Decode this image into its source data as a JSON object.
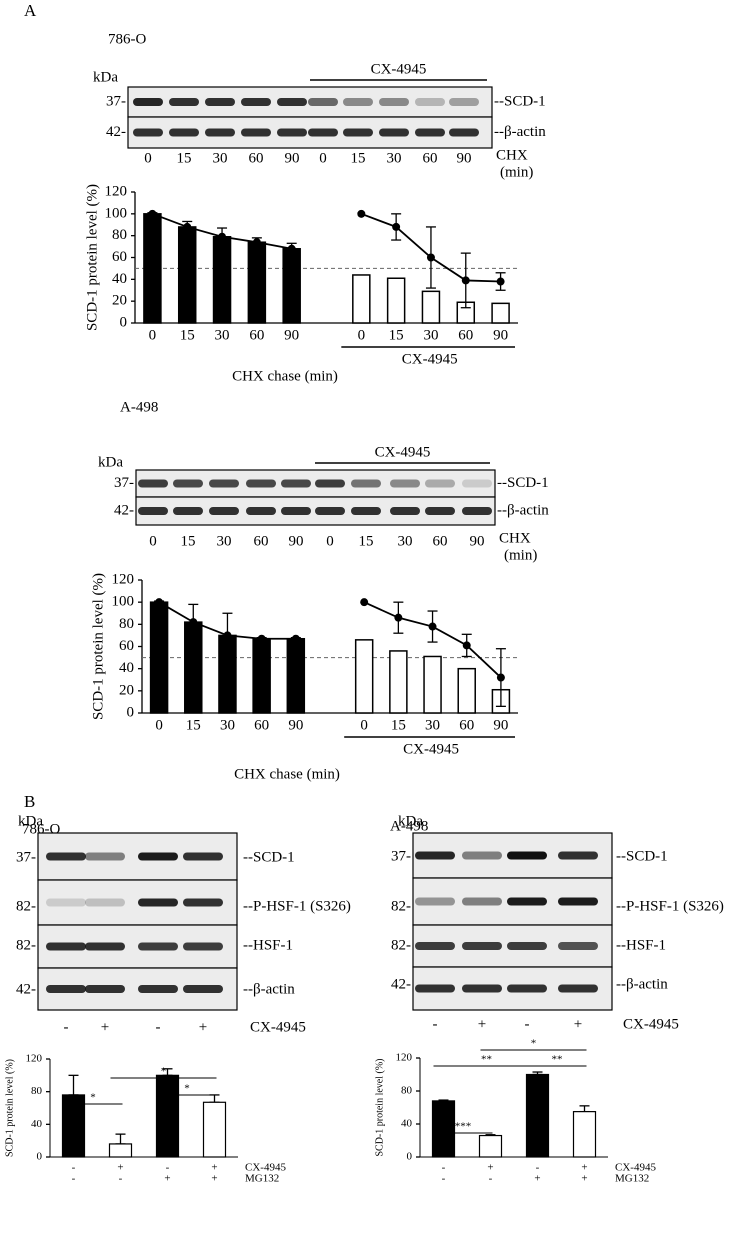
{
  "panel_labels": [
    "A",
    "B"
  ],
  "blots": [
    {
      "cell_line": "786-O",
      "treatment": "CX-4945",
      "unit": "kDa",
      "rows": [
        {
          "marker": "37-",
          "protein": "--SCD-1"
        },
        {
          "marker": "42-",
          "protein": "--β-actin"
        }
      ],
      "lanes": [
        0,
        15,
        30,
        60,
        90,
        0,
        15,
        30,
        60,
        90
      ],
      "lane_axis": [
        "CHX",
        "(min)"
      ]
    },
    {
      "cell_line": "A-498",
      "treatment": "CX-4945",
      "unit": "kDa",
      "rows": [
        {
          "marker": "37-",
          "protein": "--SCD-1"
        },
        {
          "marker": "42-",
          "protein": "--β-actin"
        }
      ],
      "lanes": [
        0,
        15,
        30,
        60,
        90,
        0,
        15,
        30,
        60,
        90
      ],
      "lane_axis": [
        "CHX",
        "(min)"
      ]
    },
    {
      "cell_line": "786-O",
      "treatment": "+MG132",
      "unit": "kDa",
      "rows": [
        {
          "marker": "37-",
          "protein": "--SCD-1"
        },
        {
          "marker": "82-",
          "protein": "--P-HSF-1 (S326)"
        },
        {
          "marker": "82-",
          "protein": "--HSF-1"
        },
        {
          "marker": "42-",
          "protein": "--β-actin"
        }
      ],
      "lanes": [
        "-",
        "+",
        "-",
        "+"
      ],
      "lane_axis": [
        "CX-4945"
      ]
    },
    {
      "cell_line": "A-498",
      "treatment": "+MG132",
      "unit": "kDa",
      "rows": [
        {
          "marker": "37-",
          "protein": "--SCD-1"
        },
        {
          "marker": "82-",
          "protein": "--P-HSF-1 (S326)"
        },
        {
          "marker": "82-",
          "protein": "--HSF-1"
        },
        {
          "marker": "42-",
          "protein": "--β-actin"
        }
      ],
      "lanes": [
        "-",
        "+",
        "-",
        "+"
      ],
      "lane_axis": [
        "CX-4945"
      ]
    }
  ],
  "chart_data": [
    {
      "type": "bar-line",
      "y_label": "SCD-1 protein level (%)",
      "x_label": "CHX chase (min)",
      "group_label": "CX-4945",
      "categories": [
        0,
        15,
        30,
        60,
        90,
        null,
        0,
        15,
        30,
        60,
        90
      ],
      "ylim": [
        0,
        120
      ],
      "yticks": [
        0,
        20,
        40,
        60,
        80,
        100,
        120
      ],
      "reference_line": 50,
      "series": [
        {
          "type": "bar",
          "color": "#000000",
          "values": [
            100,
            88,
            79,
            74,
            68,
            null,
            null,
            null,
            null,
            null,
            null
          ]
        },
        {
          "type": "bar",
          "color": "#ffffff",
          "values": [
            null,
            null,
            null,
            null,
            null,
            null,
            44,
            41,
            29,
            19,
            18
          ]
        },
        {
          "type": "line",
          "color": "#000000",
          "values": [
            100,
            88,
            79,
            74,
            68,
            null,
            100,
            88,
            60,
            39,
            38
          ],
          "errors": [
            1,
            5,
            8,
            4,
            5,
            null,
            null,
            12,
            28,
            25,
            8
          ]
        }
      ]
    },
    {
      "type": "bar-line",
      "y_label": "SCD-1 protein level (%)",
      "x_label": "CHX chase (min)",
      "group_label": "CX-4945",
      "categories": [
        0,
        15,
        30,
        60,
        90,
        null,
        0,
        15,
        30,
        60,
        90
      ],
      "ylim": [
        0,
        120
      ],
      "yticks": [
        0,
        20,
        40,
        60,
        80,
        100,
        120
      ],
      "reference_line": 50,
      "series": [
        {
          "type": "bar",
          "color": "#000000",
          "values": [
            100,
            82,
            70,
            67,
            67,
            null,
            null,
            null,
            null,
            null,
            null
          ]
        },
        {
          "type": "bar",
          "color": "#ffffff",
          "values": [
            null,
            null,
            null,
            null,
            null,
            null,
            66,
            56,
            51,
            40,
            21
          ]
        },
        {
          "type": "line",
          "color": "#000000",
          "values": [
            100,
            82,
            70,
            67,
            67,
            null,
            100,
            86,
            78,
            61,
            32
          ],
          "errors": [
            1,
            16,
            20,
            1,
            1,
            null,
            null,
            14,
            14,
            10,
            26
          ]
        }
      ]
    },
    {
      "type": "bar",
      "y_label": "SCD-1 protein level (%)",
      "conditions": [
        {
          "label": "CX-4945",
          "values": [
            "-",
            "+",
            "-",
            "+"
          ]
        },
        {
          "label": "MG132",
          "values": [
            "-",
            "-",
            "+",
            "+"
          ]
        }
      ],
      "ylim": [
        0,
        120
      ],
      "yticks": [
        0,
        40,
        80,
        120
      ],
      "values": [
        76,
        16,
        100,
        67
      ],
      "errors": [
        24,
        12,
        8,
        9
      ],
      "colors": [
        "#000000",
        "#ffffff",
        "#000000",
        "#ffffff"
      ],
      "significance": [
        "*",
        "*",
        "*"
      ]
    },
    {
      "type": "bar",
      "y_label": "SCD-1 protein level (%)",
      "conditions": [
        {
          "label": "CX-4945",
          "values": [
            "-",
            "+",
            "-",
            "+"
          ]
        },
        {
          "label": "MG132",
          "values": [
            "-",
            "-",
            "+",
            "+"
          ]
        }
      ],
      "ylim": [
        0,
        120
      ],
      "yticks": [
        0,
        40,
        80,
        120
      ],
      "values": [
        68,
        26,
        100,
        55
      ],
      "errors": [
        1,
        1,
        3,
        7
      ],
      "colors": [
        "#000000",
        "#ffffff",
        "#000000",
        "#ffffff"
      ],
      "significance": [
        "***",
        "**",
        "*",
        "**"
      ]
    }
  ]
}
